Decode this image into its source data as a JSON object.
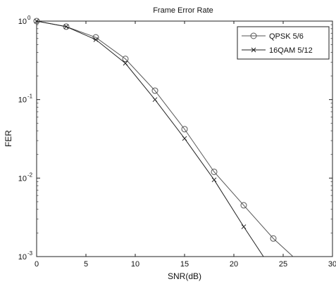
{
  "chart_data": {
    "type": "line",
    "title": "Frame Error Rate",
    "xlabel": "SNR(dB)",
    "ylabel": "FER",
    "x_ticks": [
      "0",
      "5",
      "10",
      "15",
      "20",
      "25",
      "30"
    ],
    "y_tick_bases": [
      "10",
      "10",
      "10",
      "10"
    ],
    "y_tick_exps": [
      "0",
      "-1",
      "-2",
      "-3"
    ],
    "xlim": [
      0,
      30
    ],
    "ylim": [
      0.001,
      1
    ],
    "yscale": "log",
    "grid": false,
    "legend_position": "top-right",
    "series": [
      {
        "name": "QPSK 5/6",
        "marker": "circle",
        "color": "#555555",
        "x": [
          0,
          3,
          6,
          9,
          12,
          15,
          18,
          21,
          24,
          26
        ],
        "y": [
          1.0,
          0.85,
          0.62,
          0.33,
          0.13,
          0.042,
          0.012,
          0.0045,
          0.0017,
          0.001
        ]
      },
      {
        "name": "16QAM 5/12",
        "marker": "x",
        "color": "#222222",
        "x": [
          0,
          3,
          6,
          9,
          12,
          15,
          18,
          21,
          23
        ],
        "y": [
          1.0,
          0.85,
          0.58,
          0.29,
          0.1,
          0.032,
          0.0095,
          0.0024,
          0.001
        ]
      }
    ]
  }
}
